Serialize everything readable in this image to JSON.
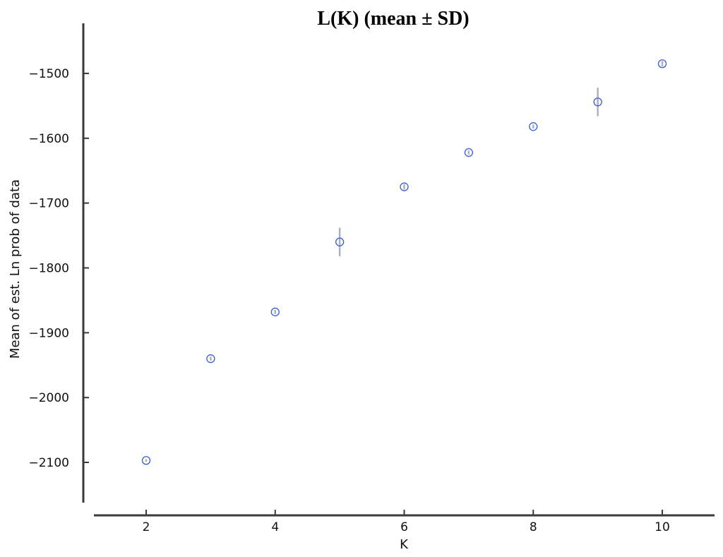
{
  "chart_data": {
    "type": "scatter",
    "title": "L(K) (mean ± SD)",
    "xlabel": "K",
    "ylabel": "Mean of est. Ln prob of data",
    "x": [
      2,
      3,
      4,
      5,
      6,
      7,
      8,
      9,
      10
    ],
    "y": [
      -2097,
      -1940,
      -1868,
      -1760,
      -1675,
      -1622,
      -1582,
      -1544,
      -1485
    ],
    "sd": [
      2,
      3,
      3,
      22,
      4,
      3,
      3,
      22,
      4
    ],
    "xlim": [
      1.3,
      10.8
    ],
    "ylim": [
      -2160,
      -1430
    ],
    "xticks": [
      2,
      4,
      6,
      8,
      10
    ],
    "xtick_labels": [
      "2",
      "4",
      "6",
      "8",
      "10"
    ],
    "yticks": [
      -2100,
      -2000,
      -1900,
      -1800,
      -1700,
      -1600,
      -1500
    ],
    "ytick_labels": [
      "−2100",
      "−2000",
      "−1900",
      "−1800",
      "−1700",
      "−1600",
      "−1500"
    ],
    "grid": false,
    "marker_color": "#3b5bdb",
    "errorbar_color": "#a9b3bd"
  }
}
